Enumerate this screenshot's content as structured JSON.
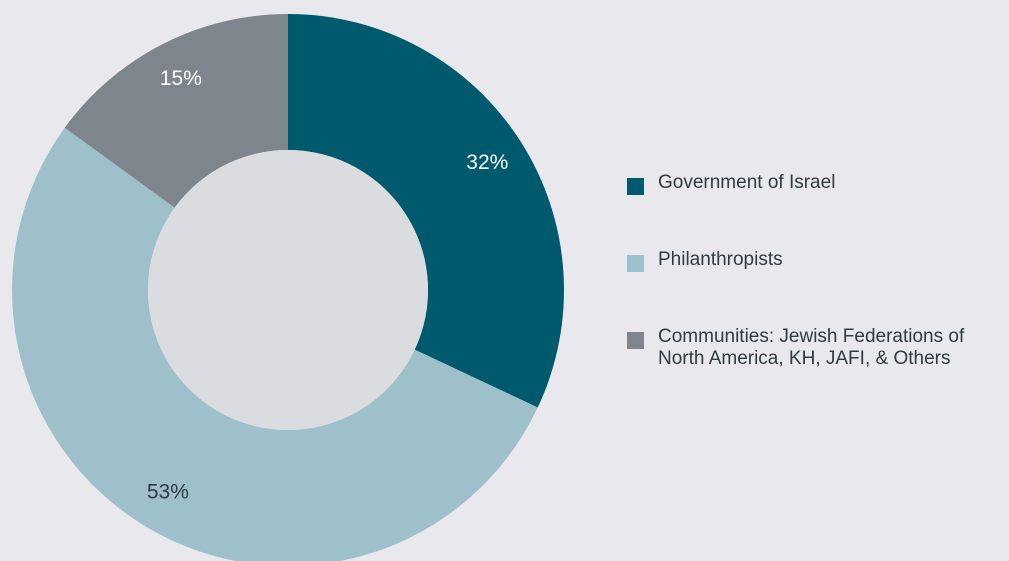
{
  "chart_data": {
    "type": "pie",
    "title": "",
    "series": [
      {
        "name": "Government of Israel",
        "value": 32,
        "label": "32%",
        "color": "#005a6e"
      },
      {
        "name": "Philanthropists",
        "value": 53,
        "label": "53%",
        "color": "#9ec0ca"
      },
      {
        "name": "Communities: Jewish Federations of North America, KH, JAFI, & Others",
        "value": 15,
        "label": "15%",
        "color": "#7f858c"
      }
    ],
    "legend_position": "right",
    "hole_color": "#dbdce0"
  },
  "legend": {
    "items": [
      {
        "lines": [
          "Government of Israel"
        ]
      },
      {
        "lines": [
          "Philanthropists"
        ]
      },
      {
        "lines": [
          "Communities: Jewish Federations of",
          "North America, KH, JAFI, & Others"
        ]
      }
    ]
  }
}
